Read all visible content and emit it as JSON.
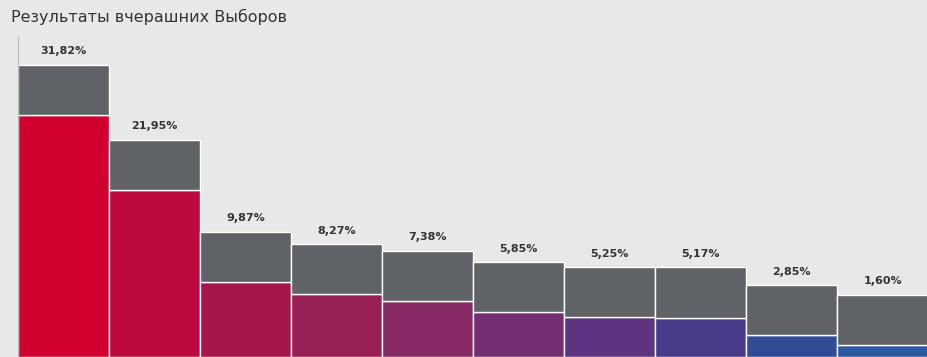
{
  "chart_data": {
    "type": "bar",
    "title": "Результаты вчерашних Выборов",
    "values": [
      31.82,
      21.95,
      9.87,
      8.27,
      7.38,
      5.85,
      5.25,
      5.17,
      2.85,
      1.6
    ],
    "value_labels": [
      "31,82%",
      "21,95%",
      "9,87%",
      "8,27%",
      "7,38%",
      "5,85%",
      "5,25%",
      "5,17%",
      "2,85%",
      "1,60%"
    ],
    "colors": [
      "#D0002F",
      "#BC0A3E",
      "#A8154B",
      "#982057",
      "#872A66",
      "#742F73",
      "#5E337F",
      "#483B8A",
      "#304C94",
      "#2B58A0"
    ],
    "ylim": [
      0,
      42
    ],
    "data_labels": true,
    "tick_labels": false,
    "grid": false
  }
}
